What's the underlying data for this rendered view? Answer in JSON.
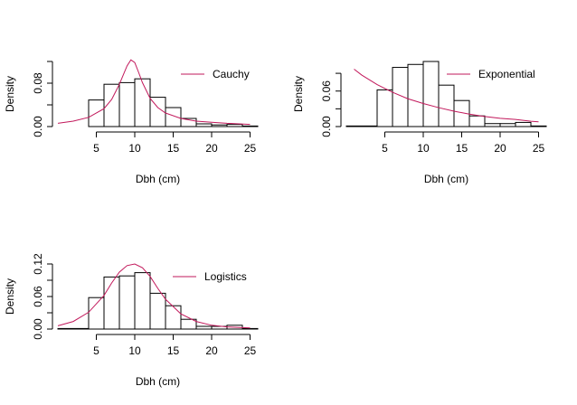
{
  "figure": {
    "layout": "2x2 grid of histogram panels, bottom-right empty"
  },
  "chart_data": [
    {
      "type": "bar",
      "panel": "top-left",
      "xlabel": "Dbh (cm)",
      "ylabel": "Density",
      "xlim": [
        0,
        26
      ],
      "ylim": [
        0,
        0.12
      ],
      "xticks": [
        5,
        10,
        15,
        20,
        25
      ],
      "yticks": [
        0.0,
        0.04,
        0.08,
        0.12
      ],
      "ytick_labels": [
        "0.00",
        "",
        "0.08",
        ""
      ],
      "grid": false,
      "bins": [
        [
          4,
          6
        ],
        [
          6,
          8
        ],
        [
          8,
          10
        ],
        [
          10,
          12
        ],
        [
          12,
          14
        ],
        [
          14,
          16
        ],
        [
          16,
          18
        ],
        [
          18,
          20
        ],
        [
          20,
          22
        ],
        [
          22,
          24
        ],
        [
          24,
          26
        ]
      ],
      "values": [
        0.049,
        0.078,
        0.081,
        0.088,
        0.054,
        0.035,
        0.015,
        0.005,
        0.003,
        0.004,
        0.001
      ],
      "fitted_curve": {
        "name": "Cauchy",
        "color": "#C2185B",
        "x": [
          0,
          2,
          4,
          6,
          7,
          8,
          9,
          9.5,
          10,
          10.5,
          11,
          12,
          13,
          14,
          16,
          18,
          20,
          22,
          25
        ],
        "y": [
          0.006,
          0.01,
          0.017,
          0.033,
          0.05,
          0.078,
          0.112,
          0.123,
          0.118,
          0.1,
          0.081,
          0.052,
          0.035,
          0.025,
          0.015,
          0.01,
          0.008,
          0.006,
          0.004
        ]
      },
      "legend": {
        "position": "top-right",
        "entries": [
          "Cauchy"
        ]
      }
    },
    {
      "type": "bar",
      "panel": "top-right",
      "xlabel": "Dbh (cm)",
      "ylabel": "Density",
      "xlim": [
        0,
        26
      ],
      "ylim": [
        0,
        0.11
      ],
      "xticks": [
        5,
        10,
        15,
        20,
        25
      ],
      "yticks": [
        0.0,
        0.03,
        0.06,
        0.09
      ],
      "ytick_labels": [
        "0.00",
        "",
        "0.06",
        ""
      ],
      "grid": false,
      "bins": [
        [
          0,
          4
        ],
        [
          4,
          6
        ],
        [
          6,
          8
        ],
        [
          8,
          10
        ],
        [
          10,
          12
        ],
        [
          12,
          14
        ],
        [
          14,
          16
        ],
        [
          16,
          18
        ],
        [
          18,
          20
        ],
        [
          20,
          22
        ],
        [
          22,
          24
        ],
        [
          24,
          26
        ]
      ],
      "values": [
        0.001,
        0.062,
        0.1,
        0.105,
        0.11,
        0.07,
        0.044,
        0.018,
        0.005,
        0.005,
        0.007,
        0.001
      ],
      "fitted_curve": {
        "name": "Exponential",
        "color": "#C2185B",
        "x": [
          1,
          2,
          4,
          6,
          8,
          10,
          12,
          14,
          16,
          18,
          20,
          22,
          24,
          25
        ],
        "y": [
          0.097,
          0.087,
          0.071,
          0.058,
          0.047,
          0.039,
          0.032,
          0.026,
          0.021,
          0.017,
          0.014,
          0.012,
          0.009,
          0.008
        ]
      },
      "legend": {
        "position": "top-right",
        "entries": [
          "Exponential"
        ]
      }
    },
    {
      "type": "bar",
      "panel": "bottom-left",
      "xlabel": "Dbh (cm)",
      "ylabel": "Density",
      "xlim": [
        0,
        26
      ],
      "ylim": [
        0,
        0.12
      ],
      "xticks": [
        5,
        10,
        15,
        20,
        25
      ],
      "yticks": [
        0.0,
        0.03,
        0.06,
        0.09,
        0.12
      ],
      "ytick_labels": [
        "0.00",
        "",
        "0.06",
        "",
        "0.12"
      ],
      "grid": false,
      "bins": [
        [
          0,
          4
        ],
        [
          4,
          6
        ],
        [
          6,
          8
        ],
        [
          8,
          10
        ],
        [
          10,
          12
        ],
        [
          12,
          14
        ],
        [
          14,
          16
        ],
        [
          16,
          18
        ],
        [
          18,
          20
        ],
        [
          20,
          22
        ],
        [
          22,
          24
        ],
        [
          24,
          26
        ]
      ],
      "values": [
        0.001,
        0.058,
        0.096,
        0.098,
        0.104,
        0.066,
        0.043,
        0.018,
        0.005,
        0.005,
        0.007,
        0.001
      ],
      "fitted_curve": {
        "name": "Logistics",
        "color": "#C2185B",
        "x": [
          0,
          2,
          4,
          6,
          7,
          8,
          9,
          10,
          11,
          12,
          13,
          14,
          16,
          18,
          20,
          22,
          25
        ],
        "y": [
          0.006,
          0.014,
          0.031,
          0.062,
          0.085,
          0.105,
          0.117,
          0.12,
          0.113,
          0.097,
          0.075,
          0.055,
          0.028,
          0.014,
          0.007,
          0.004,
          0.002
        ]
      },
      "legend": {
        "position": "top-right",
        "entries": [
          "Logistics"
        ]
      }
    }
  ]
}
